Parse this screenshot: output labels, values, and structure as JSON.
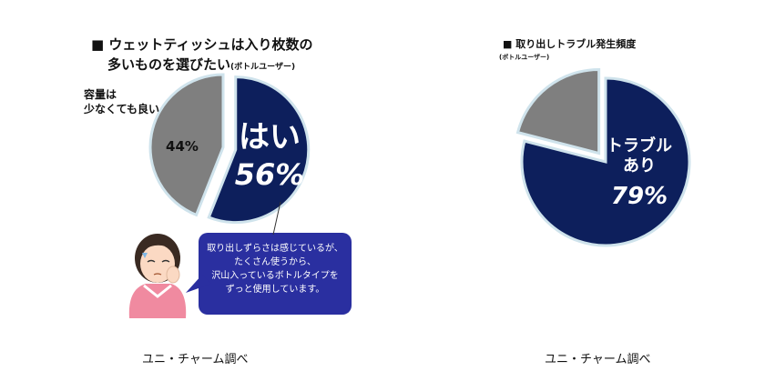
{
  "chart_data": [
    {
      "type": "pie",
      "title_line1": "■ ウェットティッシュは入り枚数の",
      "title_line2": "多いものを選びたい",
      "title_note": "(ボトルユーザー)",
      "slices": [
        {
          "label": "はい",
          "value": 56,
          "value_text": "56%",
          "color": "#0d1f5c"
        },
        {
          "label": "容量は少なくても良い",
          "label_line1": "容量は",
          "label_line2": "少なくても良い",
          "value": 44,
          "value_text": "44%",
          "color": "#7f7f7f"
        }
      ],
      "start_angle_deg": 90,
      "exploded_slice": "はい",
      "source": "ユニ・チャーム調べ",
      "callout": {
        "lines": [
          "取り出しずらさは感じているが、",
          "たくさん使うから、",
          "沢山入っているボトルタイプを",
          "ずっと使用しています。"
        ],
        "color": "#2a2fa0"
      },
      "illustration": "worried-woman-icon"
    },
    {
      "type": "pie",
      "title_line1": "■ 取り出しトラブル発生頻度",
      "title_note": "(ボトルユーザー)",
      "slices": [
        {
          "label": "トラブルあり",
          "label_line1": "トラブル",
          "label_line2": "あり",
          "value": 79,
          "value_text": "79%",
          "color": "#0d1f5c"
        },
        {
          "label": "",
          "value": 21,
          "value_text": "",
          "color": "#7f7f7f"
        }
      ],
      "start_angle_deg": 90,
      "exploded_slice": "",
      "source": "ユニ・チャーム調べ"
    }
  ],
  "colors": {
    "navy": "#0d1f5c",
    "gray": "#7f7f7f",
    "outline": "#cfe3ec",
    "bubble": "#2a2fa0"
  }
}
